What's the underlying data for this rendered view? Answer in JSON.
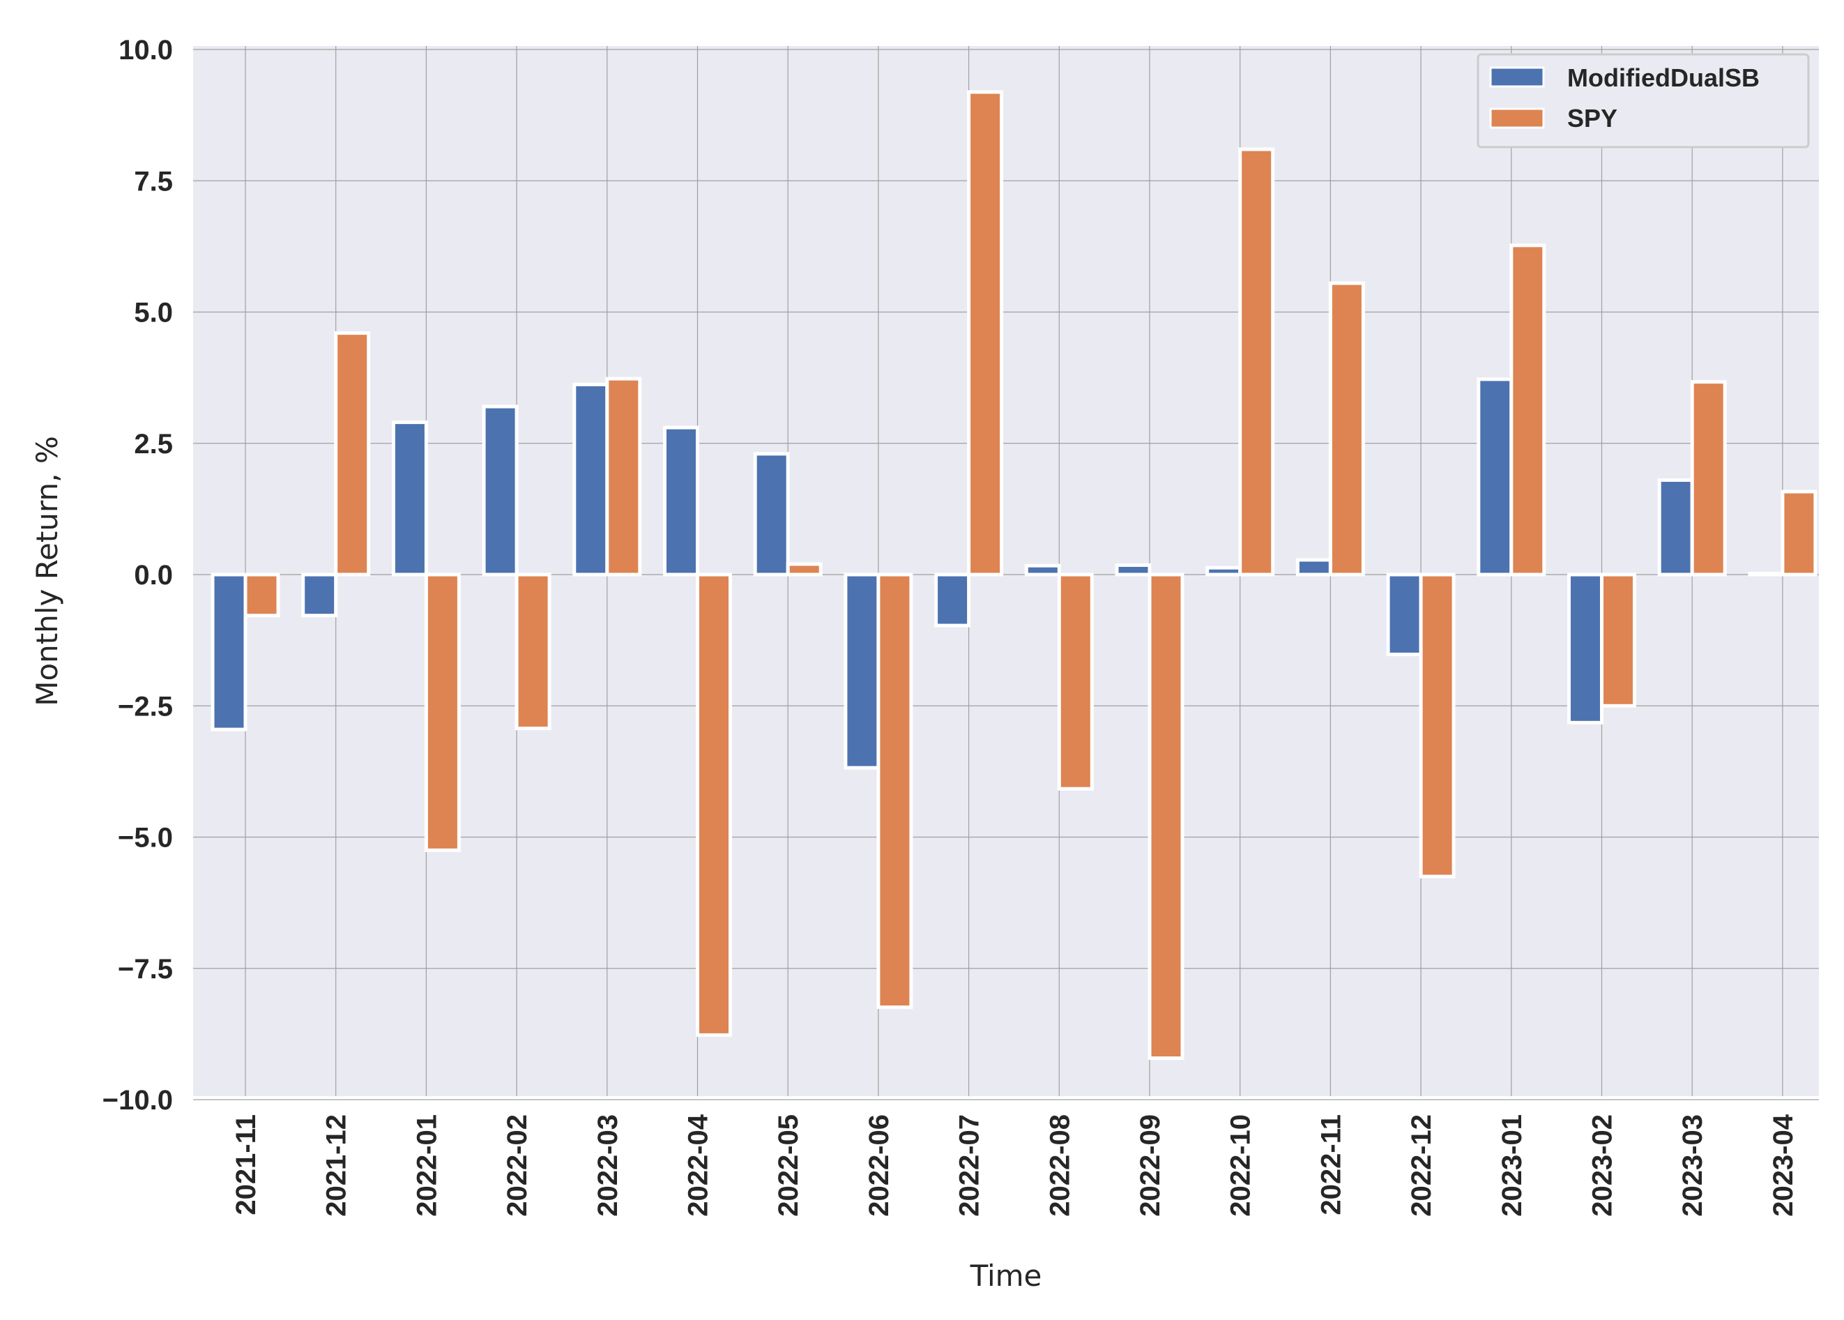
{
  "chart_data": {
    "type": "bar",
    "categories": [
      "2021-11",
      "2021-12",
      "2022-01",
      "2022-02",
      "2022-03",
      "2022-04",
      "2022-05",
      "2022-06",
      "2022-07",
      "2022-08",
      "2022-09",
      "2022-10",
      "2022-11",
      "2022-12",
      "2023-01",
      "2023-02",
      "2023-03",
      "2023-04"
    ],
    "series": [
      {
        "name": "ModifiedDualSB",
        "color": "#4c72b0",
        "values": [
          -2.95,
          -0.78,
          2.9,
          3.2,
          3.62,
          2.8,
          2.3,
          -3.68,
          -0.97,
          0.17,
          0.18,
          0.13,
          0.28,
          -1.52,
          3.72,
          -2.82,
          1.8,
          0.02
        ]
      },
      {
        "name": "SPY",
        "color": "#dd8452",
        "values": [
          -0.78,
          4.6,
          -5.25,
          -2.93,
          3.73,
          -8.77,
          0.2,
          -8.24,
          9.19,
          -4.08,
          -9.21,
          8.1,
          5.55,
          -5.75,
          6.27,
          -2.5,
          3.67,
          1.58
        ]
      }
    ],
    "title": "",
    "xlabel": "Time",
    "ylabel": "Monthly Return, %",
    "ylim": [
      -10,
      10
    ],
    "yticks": [
      10.0,
      7.5,
      5.0,
      2.5,
      0.0,
      -2.5,
      -5.0,
      -7.5,
      -10.0
    ],
    "ytick_labels": [
      "10.0",
      "7.5",
      "5.0",
      "2.5",
      "0.0",
      "−2.5",
      "−5.0",
      "−7.5",
      "−10.0"
    ],
    "grid": true,
    "legend_position": "top-right",
    "background_color": "#eaeaf2",
    "grid_color": "#a0a0a0"
  }
}
